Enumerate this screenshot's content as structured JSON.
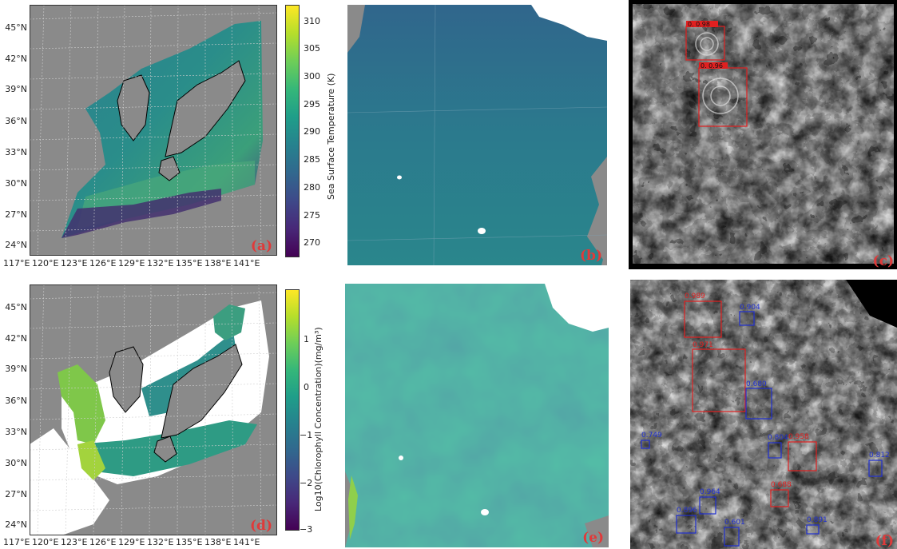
{
  "panels": {
    "a": {
      "label": "(a)"
    },
    "b": {
      "label": "(b)"
    },
    "c": {
      "label": "(c)"
    },
    "d": {
      "label": "(d)"
    },
    "e": {
      "label": "(e)"
    },
    "f": {
      "label": "(f)"
    }
  },
  "map_axes": {
    "lat_labels": [
      "45°N",
      "42°N",
      "39°N",
      "36°N",
      "33°N",
      "30°N",
      "27°N",
      "24°N"
    ],
    "lon_labels": [
      "117°E",
      "120°E",
      "123°E",
      "126°E",
      "129°E",
      "132°E",
      "135°E",
      "138°E",
      "141°E"
    ]
  },
  "colorbar_a": {
    "title": "Sea Surface Temperature (K)",
    "ticks": [
      "310",
      "305",
      "300",
      "295",
      "290",
      "285",
      "280",
      "275",
      "270"
    ]
  },
  "colorbar_d": {
    "title": "Log10(Chlorophyll Concentration)(mg/m³)",
    "ticks": [
      "1",
      "0",
      "−1",
      "−2",
      "−3"
    ]
  },
  "detections_c": [
    {
      "text": "0. 0.98",
      "color": "#e02020"
    },
    {
      "text": "0. 0.96",
      "color": "#e02020"
    }
  ],
  "detections_f": [
    {
      "text": "0.989",
      "color": "#e02020"
    },
    {
      "text": "0.904",
      "color": "#2030d0"
    },
    {
      "text": "0.971",
      "color": "#e02020"
    },
    {
      "text": "0.680",
      "color": "#2030d0"
    },
    {
      "text": "0.749",
      "color": "#2030d0"
    },
    {
      "text": "0.804",
      "color": "#2030d0"
    },
    {
      "text": "0.958",
      "color": "#e02020"
    },
    {
      "text": "0.812",
      "color": "#2030d0"
    },
    {
      "text": "0.964",
      "color": "#2030d0"
    },
    {
      "text": "0.688",
      "color": "#e02020"
    },
    {
      "text": "0.896",
      "color": "#2030d0"
    },
    {
      "text": "0.601",
      "color": "#2030d0"
    },
    {
      "text": "0.891",
      "color": "#2030d0"
    }
  ]
}
